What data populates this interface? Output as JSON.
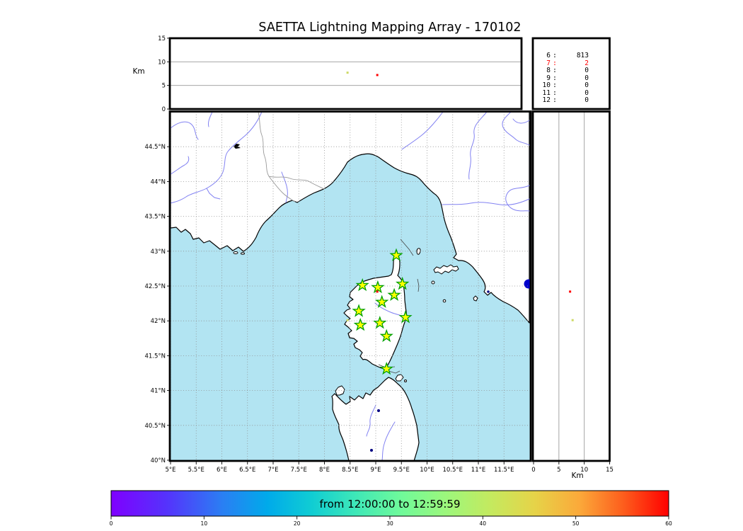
{
  "title": "SAETTA Lightning Mapping Array - 170102",
  "panels": {
    "altitude_top": {
      "ylabel": "Km",
      "ytick_labels": [
        "0",
        "5",
        "10",
        "15"
      ],
      "ytick_values": [
        0,
        5,
        10,
        15
      ],
      "ylim": [
        0,
        15
      ]
    },
    "altitude_right": {
      "xlabel": "Km",
      "xtick_labels": [
        "0",
        "5",
        "10",
        "15"
      ],
      "xtick_values": [
        0,
        5,
        10,
        15
      ],
      "xlim": [
        0,
        15
      ]
    }
  },
  "map_axes": {
    "lon_tick_labels": [
      "5°E",
      "5.5°E",
      "6°E",
      "6.5°E",
      "7°E",
      "7.5°E",
      "8°E",
      "8.5°E",
      "9°E",
      "9.5°E",
      "10°E",
      "10.5°E",
      "11°E",
      "11.5°E"
    ],
    "lon_tick_values": [
      5,
      5.5,
      6,
      6.5,
      7,
      7.5,
      8,
      8.5,
      9,
      9.5,
      10,
      10.5,
      11,
      11.5
    ],
    "lat_tick_labels": [
      "40°N",
      "40.5°N",
      "41°N",
      "41.5°N",
      "42°N",
      "42.5°N",
      "43°N",
      "43.5°N",
      "44°N",
      "44.5°N"
    ],
    "lat_tick_values": [
      40,
      40.5,
      41,
      41.5,
      42,
      42.5,
      43,
      43.5,
      44,
      44.5
    ]
  },
  "station_count_table": {
    "rows": [
      {
        "n_stations": "6",
        "count": "813",
        "color": "#000000"
      },
      {
        "n_stations": "7",
        "count": "2",
        "color": "#ff0000"
      },
      {
        "n_stations": "8",
        "count": "0",
        "color": "#000000"
      },
      {
        "n_stations": "9",
        "count": "0",
        "color": "#000000"
      },
      {
        "n_stations": "10",
        "count": "0",
        "color": "#000000"
      },
      {
        "n_stations": "11",
        "count": "0",
        "color": "#000000"
      },
      {
        "n_stations": "12",
        "count": "0",
        "color": "#000000"
      }
    ]
  },
  "colorbar": {
    "label": "from 12:00:00 to 12:59:59",
    "tick_labels": [
      "0",
      "10",
      "20",
      "30",
      "40",
      "50",
      "60"
    ],
    "tick_values": [
      0,
      10,
      20,
      30,
      40,
      50,
      60
    ]
  },
  "style": {
    "sea_color": "#b2e4f2",
    "star_fill": "#ffff00",
    "star_edge": "#00a000",
    "flash_red": "#ff0000",
    "flash_yellow_green": "#cdd964",
    "lake_color": "#000080",
    "bolsena_color": "#0000cc"
  },
  "chart_data": {
    "type": "scatter",
    "title": "SAETTA Lightning Mapping Array - 170102",
    "date_code": "170102",
    "map_extent": {
      "lon_min": 5,
      "lon_max": 12,
      "lat_min": 40,
      "lat_max": 45
    },
    "altitude_axis_km": {
      "min": 0,
      "max": 15,
      "gridlines": [
        5,
        10
      ]
    },
    "lma_stations_lonlat": [
      [
        9.4,
        42.94
      ],
      [
        8.74,
        42.51
      ],
      [
        9.04,
        42.48
      ],
      [
        9.52,
        42.53
      ],
      [
        9.36,
        42.37
      ],
      [
        9.12,
        42.27
      ],
      [
        8.67,
        42.14
      ],
      [
        9.58,
        42.05
      ],
      [
        9.08,
        41.97
      ],
      [
        8.7,
        41.94
      ],
      [
        9.21,
        41.78
      ],
      [
        9.21,
        41.31
      ]
    ],
    "flash_sources": [
      {
        "lon": 8.45,
        "lat": 42.01,
        "alt_km": 7.7,
        "color": "#cdd964"
      },
      {
        "lon": 9.03,
        "lat": 42.42,
        "alt_km": 7.2,
        "color": "#ff0000"
      }
    ],
    "sources_detected_by_n_stations": [
      [
        "6",
        813
      ],
      [
        "7",
        2
      ],
      [
        "8",
        0
      ],
      [
        "9",
        0
      ],
      [
        "10",
        0
      ],
      [
        "11",
        0
      ],
      [
        "12",
        0
      ]
    ],
    "time_window": {
      "from": "12:00:00",
      "to": "12:59:59"
    },
    "colorbar": {
      "min": 0,
      "max": 60,
      "ticks": [
        0,
        10,
        20,
        30,
        40,
        50,
        60
      ],
      "legend_position": "bottom"
    },
    "grid": "dotted 0.5 degree"
  }
}
